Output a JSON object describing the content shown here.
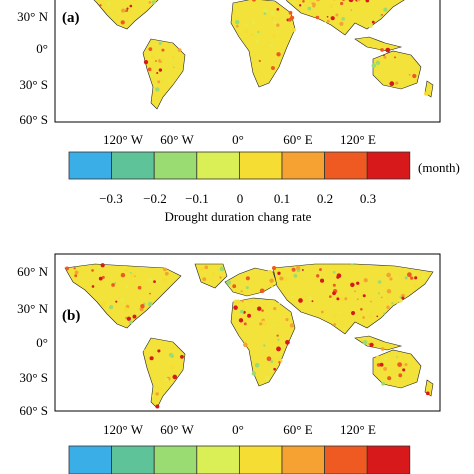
{
  "panels": [
    {
      "label": "(a)",
      "lat_ticks": [
        "30° N",
        "0°",
        "30° S",
        "60° S"
      ],
      "lon_ticks": [
        "120° W",
        "60° W",
        "0°",
        "60° E",
        "120° E"
      ]
    },
    {
      "label": "(b)",
      "lat_ticks": [
        "60° N",
        "30° N",
        "0°",
        "30° S",
        "60° S"
      ],
      "lon_ticks": [
        "120° W",
        "60° W",
        "0°",
        "60° E",
        "120° E"
      ]
    }
  ],
  "legend": {
    "colors": [
      "#3aaee6",
      "#5fc39a",
      "#9bdc72",
      "#d9ef55",
      "#f6dd33",
      "#f5a233",
      "#ee5a22",
      "#d7191c"
    ],
    "ticks": [
      "−0.3",
      "−0.2",
      "−0.1",
      "0",
      "0.1",
      "0.2",
      "0.3"
    ],
    "unit": "(month)",
    "title": "Drought duration chang rate"
  }
}
